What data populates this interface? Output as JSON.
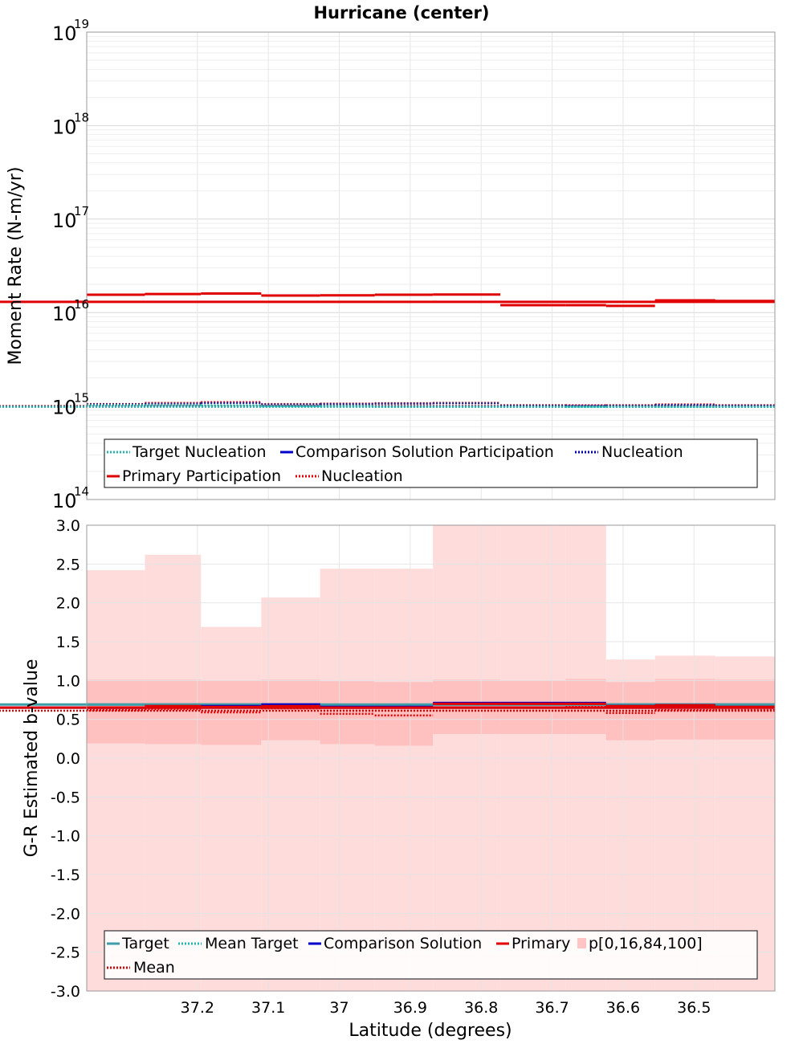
{
  "title": "Hurricane (center)",
  "chart_data": [
    {
      "type": "line",
      "subtype": "step",
      "title": "Hurricane (center)",
      "ylabel": "Moment Rate (N-m/yr)",
      "xlabel": "Latitude (degrees)",
      "yscale": "log",
      "ylim": [
        100000000000000.0,
        1e+19
      ],
      "x_reversed": true,
      "xlim": [
        37.356,
        36.386
      ],
      "grid": true,
      "y_tick_labels": [
        {
          "value": 100000000000000.0,
          "base": "10",
          "exp": "14"
        },
        {
          "value": 1000000000000000.0,
          "base": "10",
          "exp": "15"
        },
        {
          "value": 1e+16,
          "base": "10",
          "exp": "16"
        },
        {
          "value": 1e+17,
          "base": "10",
          "exp": "17"
        },
        {
          "value": 1e+18,
          "base": "10",
          "exp": "18"
        },
        {
          "value": 1e+19,
          "base": "10",
          "exp": "19"
        }
      ],
      "bin_edges": [
        37.356,
        37.274,
        37.195,
        37.11,
        37.027,
        36.95,
        36.868,
        36.773,
        36.681,
        36.624,
        36.555,
        36.47,
        36.386
      ],
      "series": [
        {
          "name": "Primary Participation",
          "color": "#e00000",
          "style": "solid",
          "values": [
            1.55e+16,
            1.58e+16,
            1.6e+16,
            1.52e+16,
            1.53e+16,
            1.55e+16,
            1.56e+16,
            1.2e+16,
            1.2e+16,
            1.18e+16,
            1.35e+16,
            1.33e+16,
            1.3e+16
          ]
        },
        {
          "name": "Nucleation",
          "color": "#e00000",
          "style": "dotted",
          "values": [
            1050000000000000.0,
            1080000000000000.0,
            1100000000000000.0,
            1050000000000000.0,
            1060000000000000.0,
            1070000000000000.0,
            1080000000000000.0,
            1020000000000000.0,
            1020000000000000.0,
            1020000000000000.0,
            1040000000000000.0,
            1020000000000000.0,
            1000000000000000.0
          ]
        },
        {
          "name": "Nucleation",
          "color": "#1f1f8f",
          "style": "dotted",
          "values": [
            1040000000000000.0,
            1060000000000000.0,
            1080000000000000.0,
            1040000000000000.0,
            1050000000000000.0,
            1060000000000000.0,
            1070000000000000.0,
            1010000000000000.0,
            1010000000000000.0,
            1010000000000000.0,
            1030000000000000.0,
            1010000000000000.0,
            990000000000000.0
          ]
        },
        {
          "name": "Target Nucleation",
          "color": "#22b8b0",
          "style": "dotted",
          "values": [
            1020000000000000.0,
            1020000000000000.0,
            1020000000000000.0,
            1000000000000000.0,
            1000000000000000.0,
            980000000000000.0,
            980000000000000.0,
            980000000000000.0,
            980000000000000.0,
            980000000000000.0,
            980000000000000.0,
            980000000000000.0,
            980000000000000.0
          ]
        }
      ],
      "legend": {
        "placement": "bottom",
        "entries": [
          {
            "label": "Target Nucleation",
            "color": "#22b8b0",
            "style": "dotted"
          },
          {
            "label": "Comparison Solution Participation",
            "color": "#0000cc",
            "style": "solid"
          },
          {
            "label": "Nucleation",
            "color": "#0000aa",
            "style": "dotted"
          },
          {
            "label": "Primary Participation",
            "color": "#e00000",
            "style": "solid"
          },
          {
            "label": "Nucleation",
            "color": "#e00000",
            "style": "dotted"
          }
        ]
      }
    },
    {
      "type": "line",
      "subtype": "step-with-bands",
      "ylabel": "G-R Estimated b-value",
      "xlabel": "Latitude (degrees)",
      "ylim": [
        -3.0,
        3.0
      ],
      "x_reversed": true,
      "xlim": [
        37.356,
        36.386
      ],
      "grid": true,
      "y_ticks": [
        -3.0,
        -2.5,
        -2.0,
        -1.5,
        -1.0,
        -0.5,
        0.0,
        0.5,
        1.0,
        1.5,
        2.0,
        2.5,
        3.0
      ],
      "y_tick_labels": [
        "-3.0",
        "-2.5",
        "-2.0",
        "-1.5",
        "-1.0",
        "-0.5",
        "0.0",
        "0.5",
        "1.0",
        "1.5",
        "2.0",
        "2.5",
        "3.0"
      ],
      "x_ticks": [
        37.2,
        37.1,
        37.0,
        36.9,
        36.8,
        36.7,
        36.6,
        36.5
      ],
      "x_tick_labels": [
        "37.2",
        "37.1",
        "37",
        "36.9",
        "36.8",
        "36.7",
        "36.6",
        "36.5"
      ],
      "bin_edges": [
        37.356,
        37.274,
        37.195,
        37.11,
        37.027,
        36.95,
        36.868,
        36.773,
        36.681,
        36.624,
        36.555,
        36.47,
        36.386
      ],
      "bands": {
        "p0": [
          -3.0,
          -3.0,
          -3.0,
          -3.0,
          -3.0,
          -3.0,
          -3.0,
          -3.0,
          -3.0,
          -3.0,
          -3.0,
          -3.0,
          -3.0
        ],
        "p16": [
          0.19,
          0.18,
          0.17,
          0.23,
          0.18,
          0.16,
          0.31,
          0.31,
          0.31,
          0.23,
          0.24,
          0.24,
          0.24
        ],
        "p84": [
          1.01,
          1.01,
          1.0,
          1.01,
          0.99,
          0.98,
          1.01,
          1.0,
          1.02,
          0.98,
          1.02,
          1.01,
          1.0
        ],
        "p100": [
          2.42,
          2.62,
          1.69,
          2.07,
          2.44,
          2.44,
          3.0,
          3.0,
          3.0,
          1.27,
          1.32,
          1.31,
          1.31
        ]
      },
      "series": [
        {
          "name": "Target",
          "color": "#3c9ea8",
          "style": "solid",
          "values": [
            0.69,
            0.69,
            0.69,
            0.69,
            0.68,
            0.68,
            0.69,
            0.69,
            0.69,
            0.69,
            0.69,
            0.69,
            0.69
          ]
        },
        {
          "name": "Comparison Solution",
          "color": "#0000cc",
          "style": "solid",
          "values": [
            0.65,
            0.66,
            0.67,
            0.69,
            0.66,
            0.66,
            0.71,
            0.71,
            0.71,
            0.67,
            0.68,
            0.66,
            0.65
          ]
        },
        {
          "name": "Primary",
          "color": "#e00000",
          "style": "solid",
          "values": [
            0.65,
            0.67,
            0.66,
            0.67,
            0.65,
            0.65,
            0.7,
            0.7,
            0.7,
            0.67,
            0.68,
            0.66,
            0.65
          ]
        },
        {
          "name": "Mean",
          "color": "#e00000",
          "style": "dotted",
          "values": [
            0.62,
            0.63,
            0.59,
            0.64,
            0.57,
            0.55,
            0.65,
            0.65,
            0.66,
            0.58,
            0.62,
            0.62,
            0.61
          ]
        }
      ],
      "legend": {
        "placement": "bottom",
        "entries": [
          {
            "label": "Target",
            "color": "#3c9ea8",
            "style": "solid"
          },
          {
            "label": "Mean Target",
            "color": "#22b8b0",
            "style": "dotted"
          },
          {
            "label": "Comparison Solution",
            "color": "#0000cc",
            "style": "solid"
          },
          {
            "label": "Primary",
            "color": "#e00000",
            "style": "solid"
          },
          {
            "label": "p[0,16,84,100]",
            "color": "#ffc4c4",
            "style": "box"
          },
          {
            "label": "Mean",
            "color": "#e00000",
            "style": "dotted"
          }
        ]
      }
    }
  ]
}
